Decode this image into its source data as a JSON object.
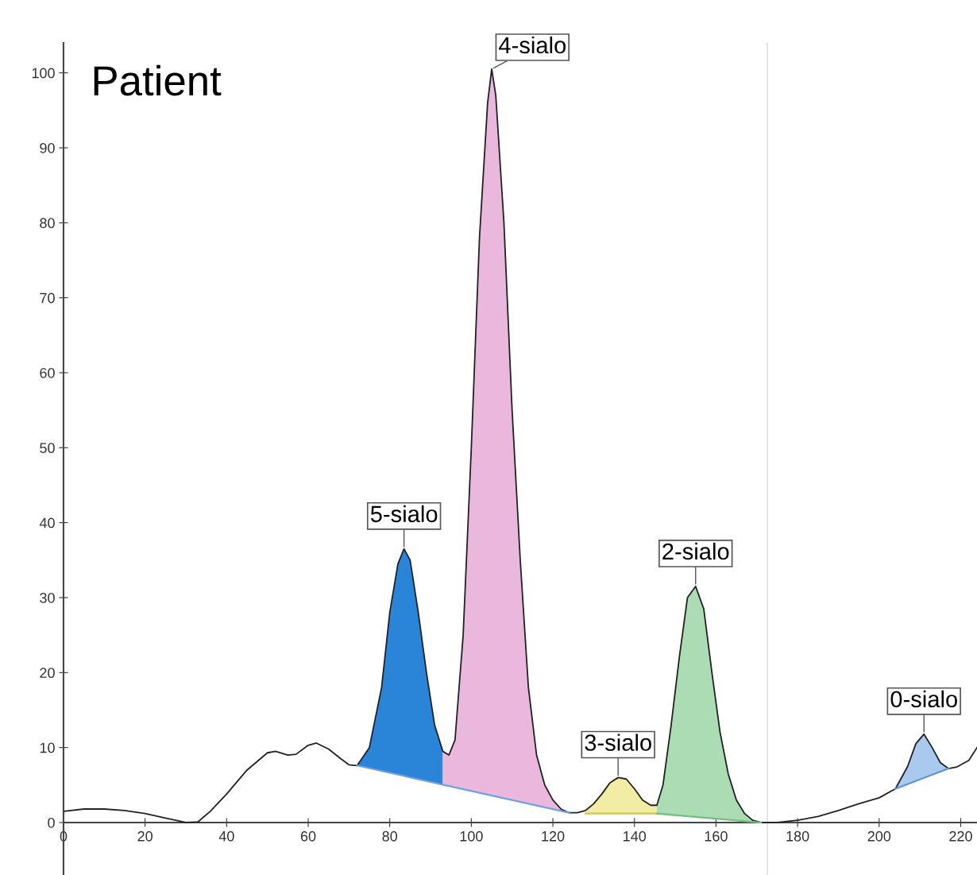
{
  "chart_data": {
    "type": "line",
    "title": "Patient",
    "xlim": [
      0,
      224
    ],
    "ylim": [
      -7,
      104
    ],
    "xticks": [
      0,
      20,
      40,
      60,
      80,
      100,
      120,
      140,
      160,
      180,
      200,
      220
    ],
    "yticks": [
      0,
      10,
      20,
      30,
      40,
      50,
      60,
      70,
      80,
      90,
      100
    ],
    "grid": false,
    "legend": false,
    "marker": "none",
    "line_style": "solid",
    "ref_lines": [
      {
        "axis": "x",
        "value": 172.6,
        "color": "#e4e4e4"
      }
    ],
    "series": [
      {
        "type": "line",
        "color": "#222222",
        "x": [
          0,
          5,
          10,
          15,
          20,
          25,
          30,
          33,
          36,
          40,
          45,
          50,
          52,
          55,
          57,
          60,
          62,
          65,
          68,
          70,
          72,
          75,
          78,
          80,
          82,
          83.5,
          85,
          87,
          89,
          91,
          93,
          94.5,
          96,
          98,
          100,
          102,
          104,
          105,
          106,
          108,
          110,
          112,
          114,
          116,
          118,
          120,
          122,
          124,
          126,
          128,
          130,
          132,
          134,
          136,
          138,
          140,
          142,
          144,
          145.5,
          147,
          149,
          151,
          153,
          155,
          157,
          159,
          161,
          163,
          165,
          167,
          169,
          171,
          175,
          180,
          185,
          190,
          195,
          200,
          204,
          207,
          209,
          211,
          213,
          215,
          217,
          219,
          222,
          224
        ],
        "values": [
          1.5,
          1.8,
          1.8,
          1.6,
          1.2,
          0.6,
          0,
          0.1,
          1.5,
          3.8,
          7,
          9.3,
          9.5,
          9,
          9.1,
          10.3,
          10.6,
          9.8,
          8.5,
          7.7,
          7.6,
          10,
          18,
          28,
          34.5,
          36.5,
          35,
          28,
          20,
          13,
          9.5,
          9,
          11,
          25,
          50,
          78,
          96,
          100.5,
          97,
          80,
          55,
          35,
          18,
          9,
          5,
          3,
          1.8,
          1.3,
          1.3,
          1.6,
          2.5,
          3.8,
          5.3,
          6,
          5.8,
          4.5,
          3,
          2.3,
          2.3,
          5,
          13,
          22,
          30,
          31.5,
          28.5,
          20,
          12,
          6.5,
          3,
          1.2,
          0.3,
          0,
          0,
          0.3,
          0.8,
          1.6,
          2.5,
          3.3,
          4.5,
          7.5,
          10.5,
          11.8,
          10,
          8,
          7.2,
          7.4,
          8.3,
          10
        ]
      },
      {
        "color": "#6f9fe0",
        "x": [
          72,
          124
        ],
        "values": [
          7.6,
          1.3
        ]
      },
      {
        "type": "area",
        "color": "#2a84d8",
        "x": [
          72,
          75,
          78,
          80,
          82,
          83.5,
          85,
          87,
          89,
          91,
          93
        ],
        "values": [
          7.6,
          10,
          18,
          28,
          34.5,
          36.5,
          35,
          28,
          20,
          13,
          9.5
        ]
      },
      {
        "type": "area",
        "color": "#eab8dd",
        "x": [
          93,
          94.5,
          96,
          98,
          100,
          102,
          104,
          105,
          106,
          108,
          110,
          112,
          114,
          116,
          118,
          120,
          122,
          124
        ],
        "values": [
          9.5,
          9,
          11,
          25,
          50,
          78,
          96,
          100.5,
          97,
          80,
          55,
          35,
          18,
          9,
          5,
          3,
          1.8,
          1.3
        ]
      },
      {
        "color": "#cfc455",
        "x": [
          128,
          145.5
        ],
        "values": [
          1.2,
          1.2
        ]
      },
      {
        "type": "area",
        "color": "#f2eca4",
        "x": [
          128,
          130,
          132,
          134,
          136,
          138,
          140,
          142,
          144,
          145.5
        ],
        "values": [
          1.6,
          2.5,
          3.8,
          5.3,
          6,
          5.8,
          4.5,
          3,
          2.3,
          2.3
        ]
      },
      {
        "color": "#74bf84",
        "x": [
          145.5,
          171
        ],
        "values": [
          1.2,
          0
        ]
      },
      {
        "type": "area",
        "color": "#acdcb4",
        "x": [
          145.5,
          147,
          149,
          151,
          153,
          155,
          157,
          159,
          161,
          163,
          165,
          167,
          169,
          171
        ],
        "values": [
          2.3,
          5,
          13,
          22,
          30,
          31.5,
          28.5,
          20,
          12,
          6.5,
          3,
          1.2,
          0.3,
          0
        ]
      },
      {
        "color": "#5f94d6",
        "x": [
          204,
          210.5,
          217
        ],
        "values": [
          4.5,
          5.85,
          7.2
        ]
      },
      {
        "type": "area",
        "color": "#a9c9ee",
        "x": [
          204,
          207,
          209,
          211,
          213,
          215,
          217
        ],
        "values": [
          4.5,
          7.5,
          10.5,
          11.8,
          10,
          8,
          7.2
        ]
      }
    ],
    "annotations": [
      {
        "text": "5-sialo",
        "x": 83.5,
        "y": 36.5
      },
      {
        "text": "4-sialo",
        "x": 105,
        "y": 100.5
      },
      {
        "text": "3-sialo",
        "x": 136,
        "y": 6
      },
      {
        "text": "2-sialo",
        "x": 155,
        "y": 31.5
      },
      {
        "text": "0-sialo",
        "x": 211,
        "y": 11.8
      }
    ]
  }
}
